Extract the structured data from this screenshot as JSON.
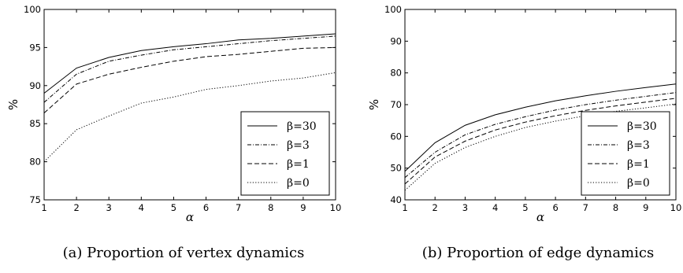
{
  "chart_data": [
    {
      "type": "line",
      "panel_label": "(a)",
      "caption": "Proportion of vertex dynamics",
      "xlabel": "α",
      "ylabel": "%",
      "xlim": [
        1,
        10
      ],
      "ylim": [
        75,
        100
      ],
      "xticks": [
        "1",
        "2",
        "3",
        "4",
        "5",
        "6",
        "7",
        "8",
        "9",
        "10"
      ],
      "yticks": [
        "75",
        "80",
        "85",
        "90",
        "95",
        "100"
      ],
      "grid": false,
      "legend_position": "lower-right",
      "x": [
        1,
        2,
        3,
        4,
        5,
        6,
        7,
        8,
        9,
        10
      ],
      "series": [
        {
          "name": "β=30",
          "dash": "solid",
          "values": [
            89.0,
            92.3,
            93.7,
            94.6,
            95.1,
            95.5,
            96.0,
            96.2,
            96.5,
            96.8
          ]
        },
        {
          "name": "β=3",
          "dash": "dashdot",
          "values": [
            87.8,
            91.5,
            93.2,
            94.0,
            94.7,
            95.1,
            95.5,
            95.9,
            96.2,
            96.5
          ]
        },
        {
          "name": "β=1",
          "dash": "dashed",
          "values": [
            86.4,
            90.2,
            91.5,
            92.4,
            93.2,
            93.8,
            94.1,
            94.5,
            94.9,
            95.0
          ]
        },
        {
          "name": "β=0",
          "dash": "dotted",
          "values": [
            80.0,
            84.2,
            86.0,
            87.7,
            88.5,
            89.5,
            90.0,
            90.6,
            91.0,
            91.7
          ]
        }
      ]
    },
    {
      "type": "line",
      "panel_label": "(b)",
      "caption": "Proportion of edge dynamics",
      "xlabel": "α",
      "ylabel": "%",
      "xlim": [
        1,
        10
      ],
      "ylim": [
        40,
        100
      ],
      "xticks": [
        "1",
        "2",
        "3",
        "4",
        "5",
        "6",
        "7",
        "8",
        "9",
        "10"
      ],
      "yticks": [
        "40",
        "50",
        "60",
        "70",
        "80",
        "90",
        "100"
      ],
      "grid": false,
      "legend_position": "lower-right",
      "x": [
        1,
        2,
        3,
        4,
        5,
        6,
        7,
        8,
        9,
        10
      ],
      "series": [
        {
          "name": "β=30",
          "dash": "solid",
          "values": [
            49.0,
            58.0,
            63.5,
            66.8,
            69.2,
            71.2,
            72.8,
            74.2,
            75.4,
            76.5
          ]
        },
        {
          "name": "β=3",
          "dash": "dashdot",
          "values": [
            47.0,
            55.0,
            60.5,
            63.8,
            66.2,
            68.3,
            70.0,
            71.4,
            72.6,
            73.8
          ]
        },
        {
          "name": "β=1",
          "dash": "dashed",
          "values": [
            45.0,
            53.5,
            58.5,
            62.0,
            64.5,
            66.5,
            68.2,
            69.6,
            70.8,
            72.0
          ]
        },
        {
          "name": "β=0",
          "dash": "dotted",
          "values": [
            43.0,
            51.5,
            56.5,
            60.0,
            62.8,
            64.8,
            66.5,
            67.9,
            69.0,
            70.2
          ]
        }
      ]
    }
  ]
}
